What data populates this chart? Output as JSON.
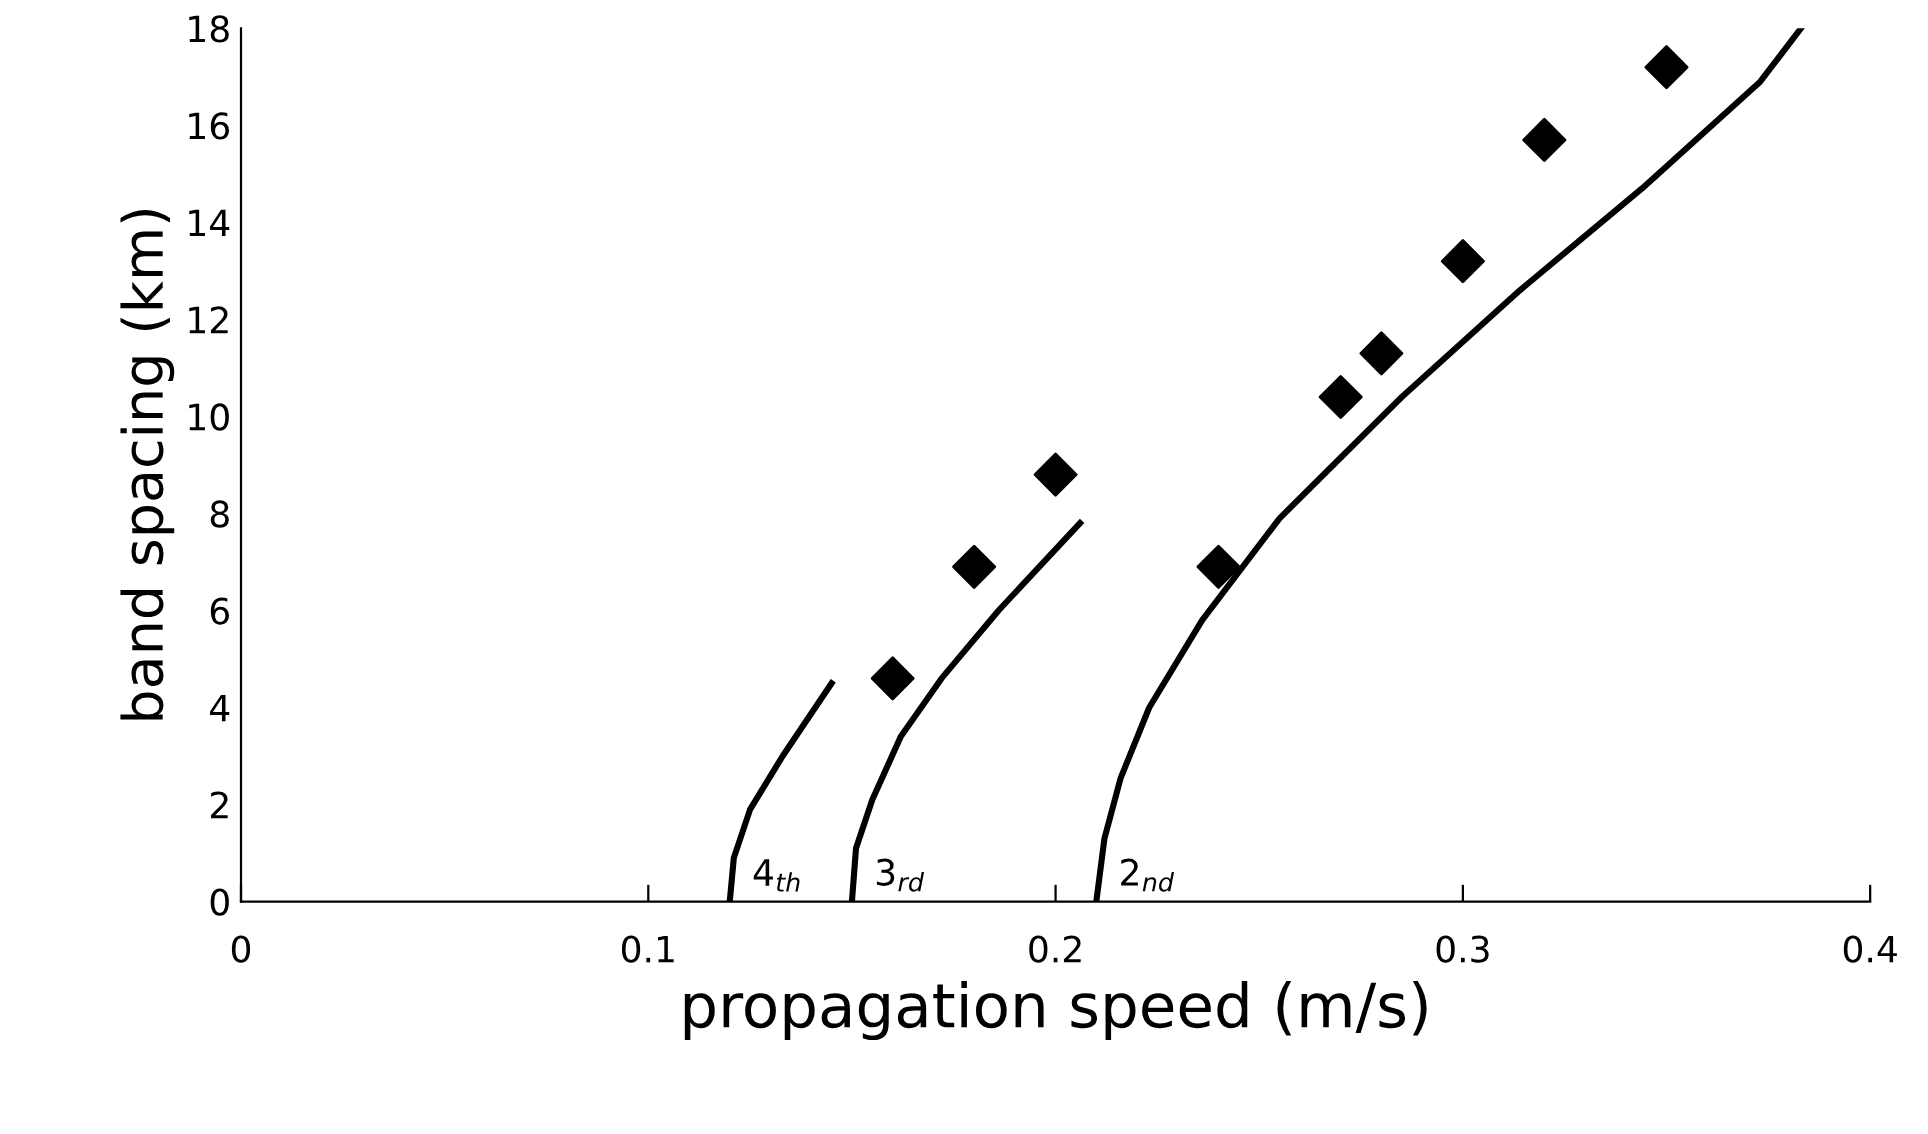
{
  "chart_data": {
    "type": "scatter",
    "xlabel": "propagation speed (m/s)",
    "ylabel": "band spacing (km)",
    "xlim": [
      0,
      0.4
    ],
    "ylim": [
      0,
      18
    ],
    "xticks": [
      0,
      0.1,
      0.2,
      0.3,
      0.4
    ],
    "yticks": [
      0,
      2,
      4,
      6,
      8,
      10,
      12,
      14,
      16,
      18
    ],
    "grid": false,
    "legend": false,
    "series": [
      {
        "type": "scatter",
        "marker": "diamond",
        "color": "#000000",
        "x": [
          0.16,
          0.18,
          0.2,
          0.24,
          0.27,
          0.28,
          0.3,
          0.32,
          0.35
        ],
        "values": [
          4.6,
          6.9,
          8.8,
          6.9,
          10.4,
          11.3,
          13.2,
          15.7,
          17.2
        ]
      },
      {
        "type": "line",
        "marker": "none",
        "line_style": "solid",
        "color": "#000000",
        "x": [
          0.12,
          0.121,
          0.125,
          0.133,
          0.145
        ],
        "values": [
          0,
          0.9,
          1.9,
          3.0,
          4.5
        ]
      },
      {
        "type": "line",
        "marker": "none",
        "line_style": "solid",
        "color": "#000000",
        "x": [
          0.15,
          0.151,
          0.155,
          0.162,
          0.172,
          0.186,
          0.206
        ],
        "values": [
          0,
          1.1,
          2.1,
          3.4,
          4.6,
          6.0,
          7.8
        ]
      },
      {
        "type": "line",
        "marker": "none",
        "line_style": "solid",
        "color": "#000000",
        "x": [
          0.21,
          0.212,
          0.216,
          0.223,
          0.236,
          0.255,
          0.285,
          0.314,
          0.344,
          0.373,
          0.383
        ],
        "values": [
          0,
          1.3,
          2.55,
          4.0,
          5.8,
          7.9,
          10.4,
          12.6,
          14.7,
          16.9,
          18.0
        ]
      }
    ],
    "annotations": [
      "4$_{th}$",
      "3$_{rd}$",
      "2$_{nd}$"
    ]
  }
}
